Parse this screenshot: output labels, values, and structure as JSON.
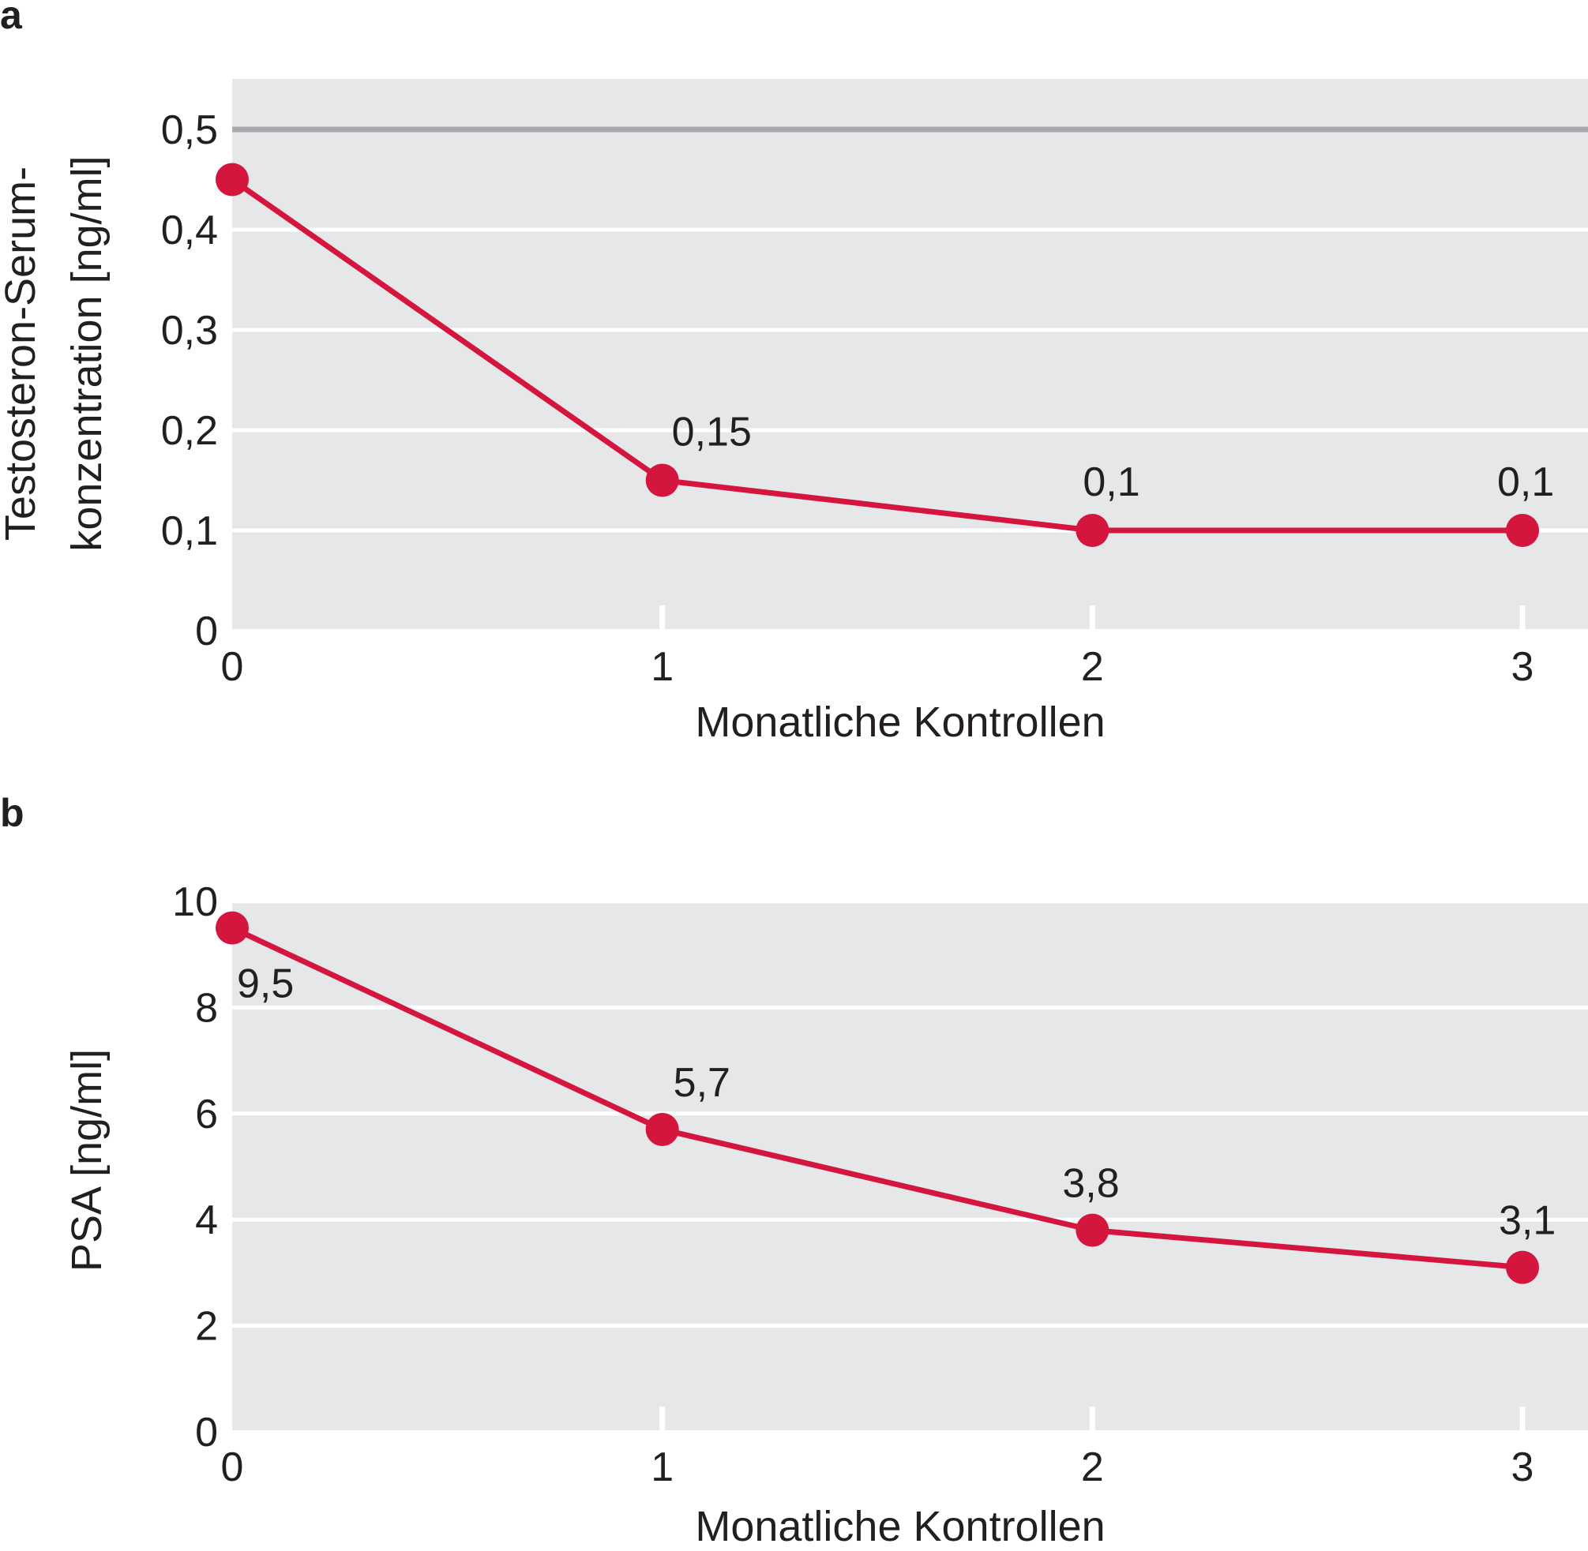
{
  "colors": {
    "plot_background": "#e6e7e9",
    "grid": "#ffffff",
    "reference_line": "#a7a9ac",
    "series": "#d4163f",
    "text": "#231f20"
  },
  "chart_data": [
    {
      "panel": "a",
      "type": "line",
      "xlabel": "Monatliche Kontrollen",
      "ylabel_lines": [
        "Testosteron-Serum-",
        "konzentration [ng/ml]"
      ],
      "xlim": [
        0,
        3
      ],
      "ylim": [
        0,
        0.55
      ],
      "x_ticks": [
        0,
        1,
        2,
        3
      ],
      "x_tick_labels": [
        "0",
        "1",
        "2",
        "3"
      ],
      "y_ticks": [
        0,
        0.1,
        0.2,
        0.3,
        0.4,
        0.5
      ],
      "y_tick_labels": [
        "0",
        "0,1",
        "0,2",
        "0,3",
        "0,4",
        "0,5"
      ],
      "reference_line": 0.5,
      "grid": true,
      "series": [
        {
          "x": [
            0,
            1,
            2,
            3
          ],
          "values": [
            0.45,
            0.15,
            0.1,
            0.1
          ],
          "data_labels": [
            "",
            "0,15",
            "0,1",
            "0,1"
          ]
        }
      ]
    },
    {
      "panel": "b",
      "type": "line",
      "xlabel": "Monatliche Kontrollen",
      "ylabel_lines": [
        "PSA [ng/ml]"
      ],
      "xlim": [
        0,
        3
      ],
      "ylim": [
        0,
        10
      ],
      "x_ticks": [
        0,
        1,
        2,
        3
      ],
      "x_tick_labels": [
        "0",
        "1",
        "2",
        "3"
      ],
      "y_ticks": [
        0,
        2,
        4,
        6,
        8,
        10
      ],
      "y_tick_labels": [
        "0",
        "2",
        "4",
        "6",
        "8",
        "10"
      ],
      "grid": true,
      "series": [
        {
          "x": [
            0,
            1,
            2,
            3
          ],
          "values": [
            9.5,
            5.7,
            3.8,
            3.1
          ],
          "data_labels": [
            "9,5",
            "5,7",
            "3,8",
            "3,1"
          ]
        }
      ]
    }
  ]
}
